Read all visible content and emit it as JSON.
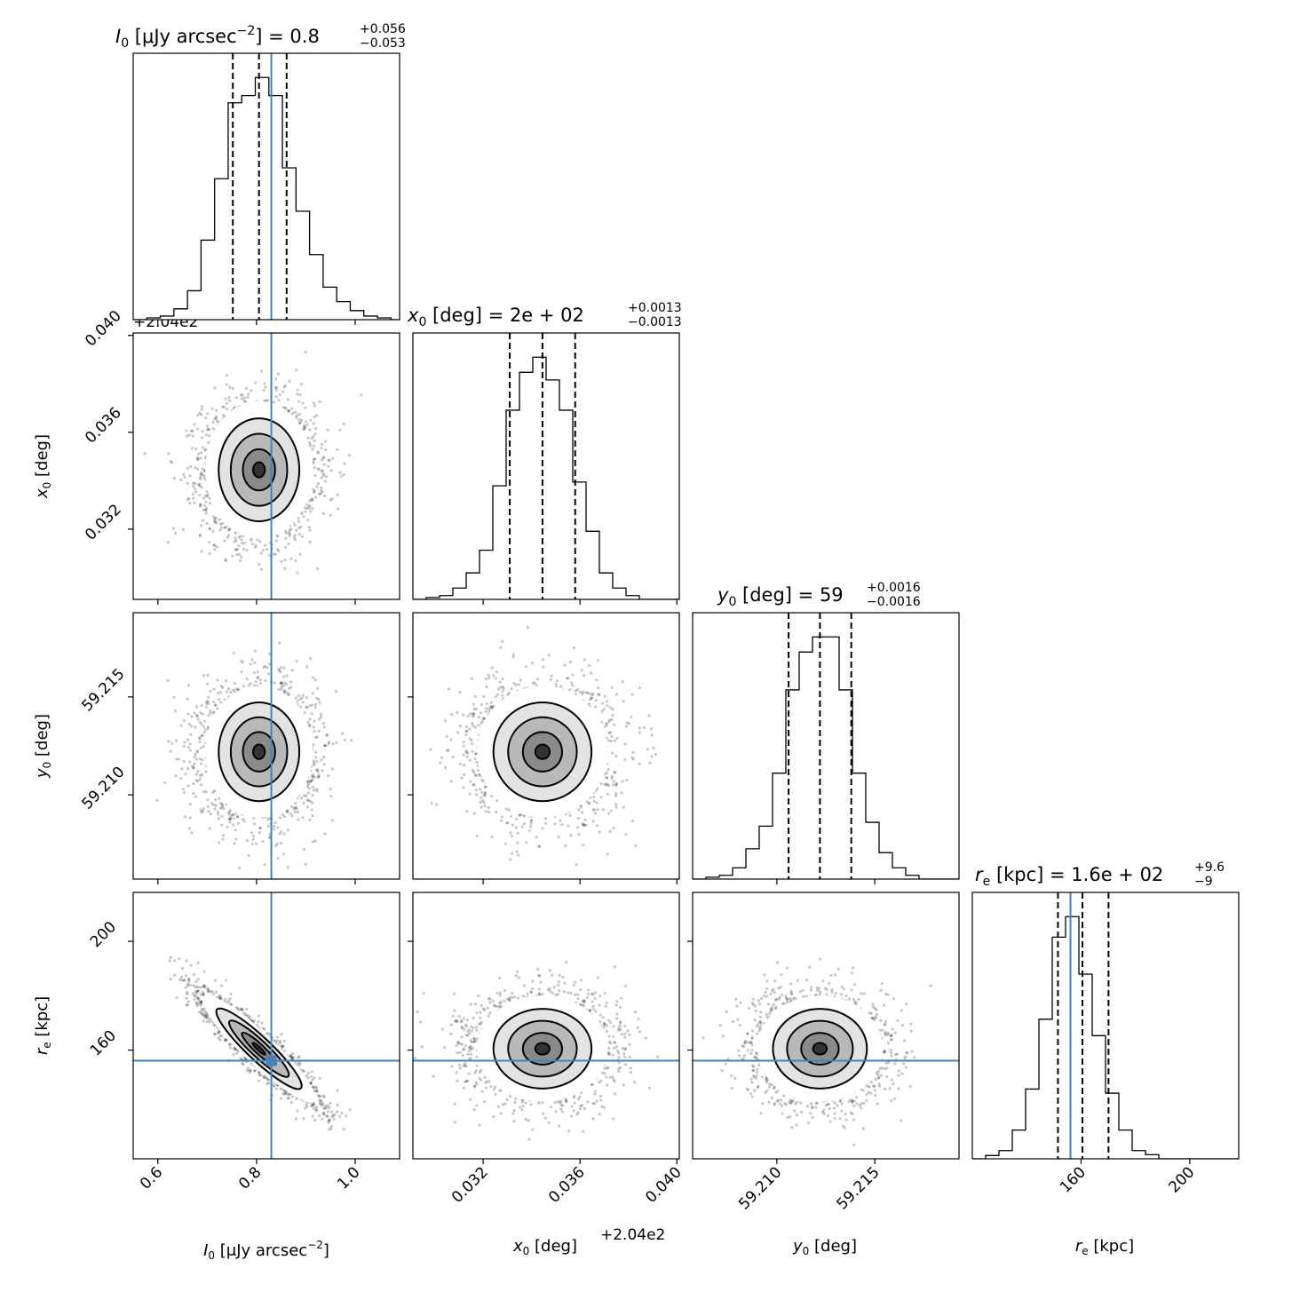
{
  "chart_data": {
    "type": "corner",
    "truth_color": "#4682b4",
    "parameters": [
      {
        "key": "I0",
        "symbol": "I",
        "sub": "0",
        "unit": "[μJy arcsec",
        "unit_sup": "−2",
        "unit_close": "]",
        "title_value": "0.8",
        "title_plus": "+0.056",
        "title_minus": "−0.053",
        "axis_label": "I0 [μJy arcsec−2]",
        "range": [
          0.55,
          1.09
        ],
        "ticks": [
          0.6,
          0.8,
          1.0
        ],
        "tick_labels": [
          "0.6",
          "0.8",
          "1.0"
        ],
        "median": 0.805,
        "q16": 0.752,
        "q84": 0.861,
        "truth": 0.83,
        "offset_text": "",
        "hist": {
          "edges_start": 0.55,
          "bin_width": 0.0275,
          "counts": [
            0,
            0.5,
            1,
            3,
            8,
            22,
            39,
            60,
            62,
            67,
            62,
            42,
            30,
            18,
            9,
            5,
            2.5,
            1,
            0.5,
            0
          ]
        }
      },
      {
        "key": "x0",
        "symbol": "x",
        "sub": "0",
        "unit": "[deg]",
        "unit_sup": "",
        "unit_close": "",
        "title_value": "2e + 02",
        "title_plus": "+0.0013",
        "title_minus": "−0.0013",
        "axis_label": "x0 [deg]",
        "range": [
          0.0291,
          0.0401
        ],
        "ticks": [
          0.032,
          0.036,
          0.04
        ],
        "tick_labels": [
          "0.032",
          "0.036",
          "0.040"
        ],
        "median": 0.03445,
        "q16": 0.0331,
        "q84": 0.0358,
        "truth": null,
        "offset_text": "+2.04e2",
        "hist": {
          "edges_start": 0.0291,
          "bin_width": 0.00055,
          "counts": [
            0,
            0.5,
            1,
            3,
            7,
            13,
            30,
            50,
            60,
            64,
            58,
            50,
            31,
            18,
            7,
            3,
            1,
            0,
            0,
            0
          ]
        }
      },
      {
        "key": "y0",
        "symbol": "y",
        "sub": "0",
        "unit": "[deg]",
        "unit_sup": "",
        "unit_close": "",
        "title_value": "59",
        "title_plus": "+0.0016",
        "title_minus": "−0.0016",
        "axis_label": "y0 [deg]",
        "range": [
          59.2057,
          59.2193
        ],
        "ticks": [
          59.21,
          59.215
        ],
        "tick_labels": [
          "59.210",
          "59.215"
        ],
        "median": 59.2122,
        "q16": 59.2106,
        "q84": 59.2138,
        "truth": null,
        "offset_text": "",
        "hist": {
          "edges_start": 59.2057,
          "bin_width": 0.00068,
          "counts": [
            0,
            0.5,
            1,
            3,
            8,
            14,
            28,
            50,
            60,
            64,
            64,
            50,
            28,
            15,
            7,
            3,
            1,
            0,
            0,
            0
          ]
        }
      },
      {
        "key": "re",
        "symbol": "r",
        "sub": "e",
        "unit": "[kpc]",
        "unit_sup": "",
        "unit_close": "",
        "title_value": "1.6e + 02",
        "title_plus": "+9.6",
        "title_minus": "−9",
        "axis_label": "re [kpc]",
        "range": [
          120,
          218
        ],
        "ticks": [
          160,
          200
        ],
        "tick_labels": [
          "160",
          "200"
        ],
        "median": 160.5,
        "q16": 151.5,
        "q84": 170.1,
        "truth": 156.1,
        "offset_text": "",
        "hist": {
          "edges_start": 120,
          "bin_width": 4.9,
          "counts": [
            0,
            0.8,
            2,
            7,
            17,
            34,
            54,
            59,
            45,
            30,
            16,
            7,
            2,
            1,
            0,
            0,
            0,
            0,
            0,
            0
          ]
        }
      }
    ],
    "pairs": [
      {
        "row": 1,
        "col": 0,
        "corr": 0.0
      },
      {
        "row": 2,
        "col": 0,
        "corr": 0.0
      },
      {
        "row": 2,
        "col": 1,
        "corr": 0.0
      },
      {
        "row": 3,
        "col": 0,
        "corr": -0.92
      },
      {
        "row": 3,
        "col": 1,
        "corr": 0.0
      },
      {
        "row": 3,
        "col": 2,
        "corr": 0.0
      }
    ],
    "text": {
      "title_I0_prefix": "I",
      "title_I0_sub": "0",
      "title_I0_unit": " [μJy arcsec",
      "title_I0_unit_sup": "−2",
      "title_I0_unit_close": "] = 0.8",
      "title_I0_plus": "+0.056",
      "title_I0_minus": "−0.053",
      "title_x0_prefix": "x",
      "title_x0_sub": "0",
      "title_x0_rest": " [deg] = 2e + 02",
      "title_x0_plus": "+0.0013",
      "title_x0_minus": "−0.0013",
      "title_y0_prefix": "y",
      "title_y0_sub": "0",
      "title_y0_rest": " [deg] = 59",
      "title_y0_plus": "+0.0016",
      "title_y0_minus": "−0.0016",
      "title_re_prefix": "r",
      "title_re_sub": "e",
      "title_re_rest": " [kpc] = 1.6e + 02",
      "title_re_plus": "+9.6",
      "title_re_minus": "−9",
      "offset_top": "+2.04e2",
      "offset_bottom": "+2.04e2",
      "xlabel_I0_sym": "I",
      "xlabel_I0_sub": "0",
      "xlabel_I0_unit": " [μJy arcsec",
      "xlabel_I0_sup": "−2",
      "xlabel_I0_close": "]",
      "xlabel_x0_sym": "x",
      "xlabel_x0_sub": "0",
      "xlabel_x0_rest": " [deg]",
      "xlabel_y0_sym": "y",
      "xlabel_y0_sub": "0",
      "xlabel_y0_rest": " [deg]",
      "xlabel_re_sym": "r",
      "xlabel_re_sub": "e",
      "xlabel_re_rest": " [kpc]",
      "ylabel_x0_sym": "x",
      "ylabel_x0_sub": "0",
      "ylabel_x0_rest": " [deg]",
      "ylabel_y0_sym": "y",
      "ylabel_y0_sub": "0",
      "ylabel_y0_rest": " [deg]",
      "ylabel_re_sym": "r",
      "ylabel_re_sub": "e",
      "ylabel_re_rest": " [kpc]"
    }
  }
}
